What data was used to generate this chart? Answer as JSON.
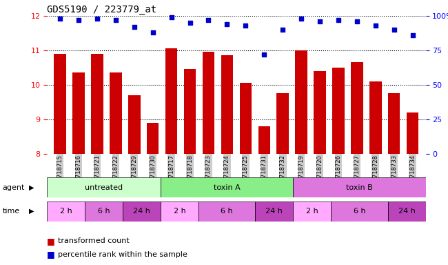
{
  "title": "GDS5190 / 223779_at",
  "samples": [
    "GSM718715",
    "GSM718716",
    "GSM718721",
    "GSM718722",
    "GSM718729",
    "GSM718730",
    "GSM718717",
    "GSM718718",
    "GSM718723",
    "GSM718724",
    "GSM718725",
    "GSM718731",
    "GSM718732",
    "GSM718719",
    "GSM718720",
    "GSM718726",
    "GSM718727",
    "GSM718728",
    "GSM718733",
    "GSM718734"
  ],
  "bar_values": [
    10.9,
    10.35,
    10.9,
    10.35,
    9.7,
    8.9,
    11.05,
    10.45,
    10.95,
    10.85,
    10.05,
    8.8,
    9.75,
    11.0,
    10.4,
    10.5,
    10.65,
    10.1,
    9.75,
    9.2
  ],
  "dot_values": [
    98,
    97,
    98,
    97,
    92,
    88,
    99,
    95,
    97,
    94,
    93,
    72,
    90,
    98,
    96,
    97,
    96,
    93,
    90,
    86
  ],
  "bar_color": "#cc0000",
  "dot_color": "#0000cc",
  "ylim_left": [
    8,
    12
  ],
  "ylim_right": [
    0,
    100
  ],
  "yticks_left": [
    8,
    9,
    10,
    11,
    12
  ],
  "yticks_right": [
    0,
    25,
    50,
    75,
    100
  ],
  "agent_groups": [
    {
      "label": "untreated",
      "start": 0,
      "end": 6
    },
    {
      "label": "toxin A",
      "start": 6,
      "end": 13
    },
    {
      "label": "toxin B",
      "start": 13,
      "end": 20
    }
  ],
  "agent_colors": {
    "untreated": "#ccffcc",
    "toxin A": "#88ee88",
    "toxin B": "#dd77dd"
  },
  "time_groups": [
    {
      "label": "2 h",
      "start": 0,
      "end": 2
    },
    {
      "label": "6 h",
      "start": 2,
      "end": 4
    },
    {
      "label": "24 h",
      "start": 4,
      "end": 6
    },
    {
      "label": "2 h",
      "start": 6,
      "end": 8
    },
    {
      "label": "6 h",
      "start": 8,
      "end": 11
    },
    {
      "label": "24 h",
      "start": 11,
      "end": 13
    },
    {
      "label": "2 h",
      "start": 13,
      "end": 15
    },
    {
      "label": "6 h",
      "start": 15,
      "end": 18
    },
    {
      "label": "24 h",
      "start": 18,
      "end": 20
    }
  ],
  "time_colors": {
    "2 h": "#ffaaff",
    "6 h": "#dd77dd",
    "24 h": "#bb44bb"
  },
  "legend_bar_label": "transformed count",
  "legend_dot_label": "percentile rank within the sample",
  "agent_label": "agent",
  "time_label": "time",
  "background_color": "#ffffff",
  "xlabel_bg": "#cccccc"
}
